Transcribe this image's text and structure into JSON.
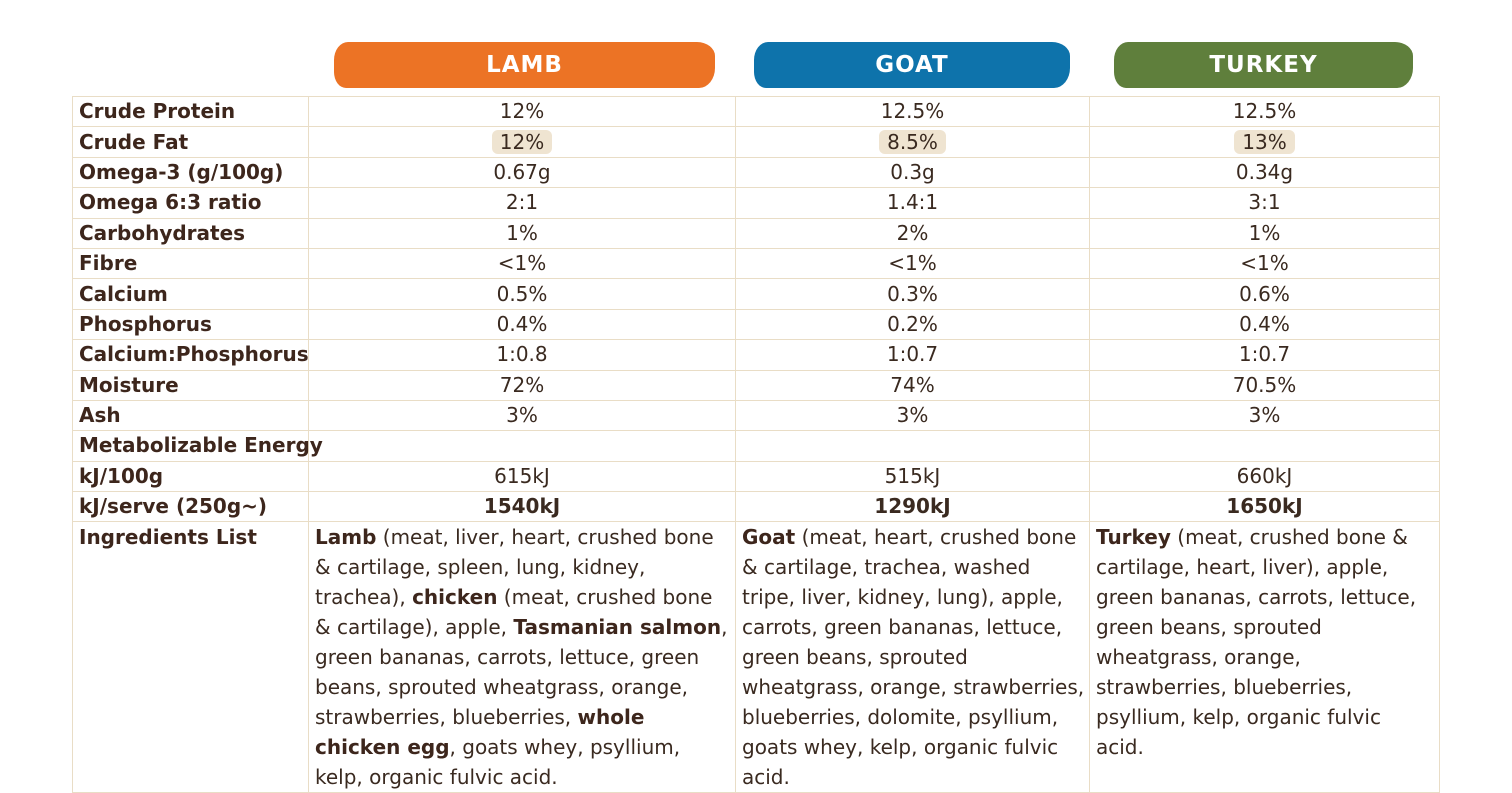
{
  "colors": {
    "lamb": "#ec7325",
    "goat": "#0e73ab",
    "turkey": "#5f7f3c",
    "border": "#e9ddc6",
    "highlight": "#efe4d1",
    "text": "#3a2a20"
  },
  "headers": {
    "lamb": "LAMB",
    "goat": "GOAT",
    "turkey": "TURKEY"
  },
  "rows": [
    {
      "label": "Crude Protein",
      "lamb": "12%",
      "goat": "12.5%",
      "turkey": "12.5%"
    },
    {
      "label": "Crude Fat",
      "lamb": "12%",
      "goat": "8.5%",
      "turkey": "13%",
      "highlight": true
    },
    {
      "label": "Omega-3 (g/100g)",
      "lamb": "0.67g",
      "goat": "0.3g",
      "turkey": "0.34g"
    },
    {
      "label": "Omega 6:3 ratio",
      "lamb": "2:1",
      "goat": "1.4:1",
      "turkey": "3:1"
    },
    {
      "label": "Carbohydrates",
      "lamb": "1%",
      "goat": "2%",
      "turkey": "1%"
    },
    {
      "label": "Fibre",
      "lamb": "<1%",
      "goat": "<1%",
      "turkey": "<1%"
    },
    {
      "label": "Calcium",
      "lamb": "0.5%",
      "goat": "0.3%",
      "turkey": "0.6%"
    },
    {
      "label": "Phosphorus",
      "lamb": "0.4%",
      "goat": "0.2%",
      "turkey": "0.4%"
    },
    {
      "label": "Calcium:Phosphorus",
      "lamb": "1:0.8",
      "goat": "1:0.7",
      "turkey": "1:0.7"
    },
    {
      "label": "Moisture",
      "lamb": "72%",
      "goat": "74%",
      "turkey": "70.5%"
    },
    {
      "label": "Ash",
      "lamb": "3%",
      "goat": "3%",
      "turkey": "3%"
    },
    {
      "label": "Metabolizable Energy",
      "lamb": "",
      "goat": "",
      "turkey": ""
    },
    {
      "label": "kJ/100g",
      "lamb": "615kJ",
      "goat": "515kJ",
      "turkey": "660kJ"
    },
    {
      "label": "kJ/serve (250g~)",
      "lamb": "1540kJ",
      "goat": "1290kJ",
      "turkey": "1650kJ",
      "bold": true
    }
  ],
  "ingredients": {
    "label": "Ingredients List",
    "lamb": [
      {
        "t": "Lamb",
        "b": true
      },
      {
        "t": " (meat, liver, heart, crushed bone & cartilage, spleen, lung, kidney, trachea), "
      },
      {
        "t": "chicken",
        "b": true
      },
      {
        "t": " (meat, crushed bone & cartilage), apple, "
      },
      {
        "t": "Tasmanian salmon",
        "b": true
      },
      {
        "t": ", green bananas, carrots, lettuce, green beans, sprouted wheatgrass, orange, strawberries, blueberries, "
      },
      {
        "t": "whole chicken egg",
        "b": true
      },
      {
        "t": ", goats whey, psyllium, kelp, organic fulvic acid."
      }
    ],
    "goat": [
      {
        "t": "Goat",
        "b": true
      },
      {
        "t": " (meat, heart, crushed bone & cartilage, trachea, washed tripe, liver, kidney, lung), apple, carrots, green bananas, lettuce, green beans, sprouted wheatgrass, orange, strawberries, blueberries, dolomite, psyllium, goats whey, kelp, organic fulvic acid."
      }
    ],
    "turkey": [
      {
        "t": "Turkey",
        "b": true
      },
      {
        "t": " (meat, crushed bone & cartilage, heart, liver), apple, green bananas, carrots, lettuce, green beans, sprouted wheatgrass, orange, strawberries, blueberries, psyllium, kelp, organic fulvic acid."
      }
    ]
  }
}
